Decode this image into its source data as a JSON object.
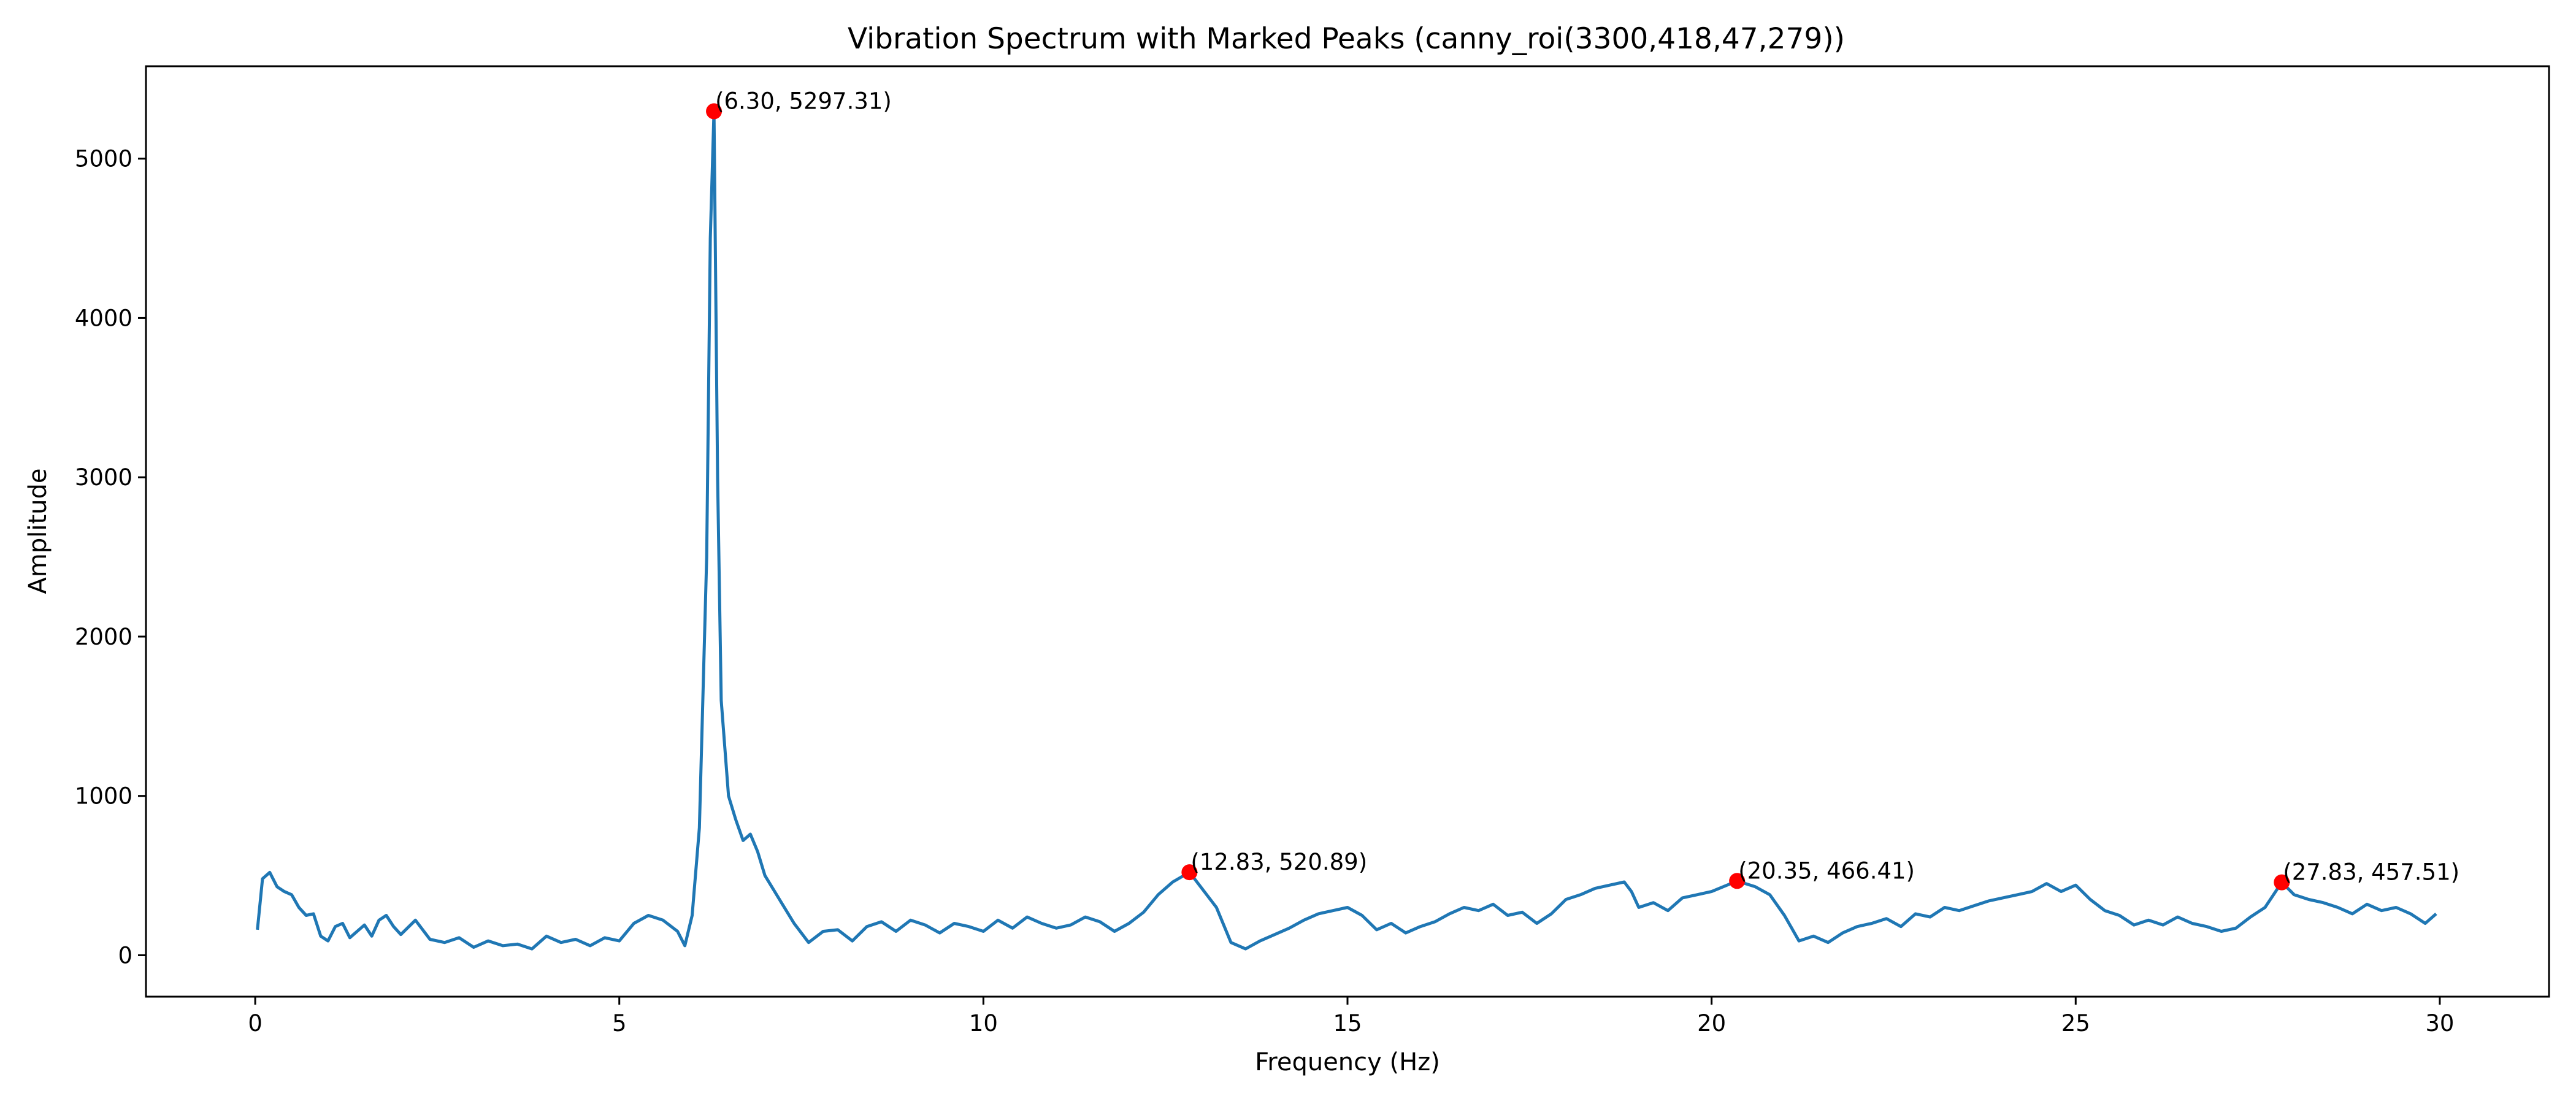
{
  "chart_data": {
    "type": "line",
    "title": "Vibration Spectrum with Marked Peaks (canny_roi(3300,418,47,279))",
    "xlabel": "Frequency (Hz)",
    "ylabel": "Amplitude",
    "xlim": [
      -1.5,
      31.5
    ],
    "ylim": [
      -260,
      5580
    ],
    "x_ticks": [
      0,
      5,
      10,
      15,
      20,
      25,
      30
    ],
    "y_ticks": [
      0,
      1000,
      2000,
      3000,
      4000,
      5000
    ],
    "grid": false,
    "colors": {
      "line": "#1f77b4",
      "peak": "#ff0000"
    },
    "series": [
      {
        "x": [
          0.03,
          0.1,
          0.2,
          0.3,
          0.4,
          0.5,
          0.6,
          0.7,
          0.8,
          0.9,
          1.0,
          1.1,
          1.2,
          1.3,
          1.4,
          1.5,
          1.6,
          1.7,
          1.8,
          1.9,
          2.0,
          2.2,
          2.4,
          2.6,
          2.8,
          3.0,
          3.2,
          3.4,
          3.6,
          3.8,
          4.0,
          4.2,
          4.4,
          4.6,
          4.8,
          5.0,
          5.2,
          5.4,
          5.6,
          5.8,
          5.9,
          6.0,
          6.1,
          6.2,
          6.25,
          6.3,
          6.35,
          6.4,
          6.5,
          6.6,
          6.7,
          6.8,
          6.9,
          7.0,
          7.2,
          7.4,
          7.6,
          7.8,
          8.0,
          8.2,
          8.4,
          8.6,
          8.8,
          9.0,
          9.2,
          9.4,
          9.6,
          9.8,
          10.0,
          10.2,
          10.4,
          10.6,
          10.8,
          11.0,
          11.2,
          11.4,
          11.6,
          11.8,
          12.0,
          12.2,
          12.4,
          12.6,
          12.83,
          13.0,
          13.2,
          13.4,
          13.6,
          13.8,
          14.0,
          14.2,
          14.4,
          14.6,
          14.8,
          15.0,
          15.2,
          15.4,
          15.6,
          15.8,
          16.0,
          16.2,
          16.4,
          16.6,
          16.8,
          17.0,
          17.2,
          17.4,
          17.6,
          17.8,
          18.0,
          18.2,
          18.4,
          18.6,
          18.8,
          18.9,
          19.0,
          19.2,
          19.4,
          19.6,
          19.8,
          20.0,
          20.35,
          20.6,
          20.8,
          21.0,
          21.2,
          21.4,
          21.6,
          21.8,
          22.0,
          22.2,
          22.4,
          22.6,
          22.8,
          23.0,
          23.2,
          23.4,
          23.6,
          23.8,
          24.0,
          24.2,
          24.4,
          24.6,
          24.8,
          25.0,
          25.2,
          25.4,
          25.6,
          25.8,
          26.0,
          26.2,
          26.4,
          26.6,
          26.8,
          27.0,
          27.2,
          27.4,
          27.6,
          27.83,
          28.0,
          28.2,
          28.4,
          28.6,
          28.8,
          29.0,
          29.2,
          29.4,
          29.6,
          29.8,
          29.95
        ],
        "y": [
          160,
          480,
          520,
          430,
          400,
          380,
          300,
          250,
          260,
          120,
          90,
          180,
          200,
          110,
          150,
          190,
          120,
          220,
          250,
          180,
          130,
          220,
          100,
          80,
          110,
          50,
          90,
          60,
          70,
          40,
          120,
          80,
          100,
          60,
          110,
          90,
          200,
          250,
          220,
          150,
          60,
          250,
          800,
          2500,
          4500,
          5297,
          3000,
          1600,
          1000,
          850,
          720,
          760,
          650,
          500,
          350,
          200,
          80,
          150,
          160,
          90,
          180,
          210,
          150,
          220,
          190,
          140,
          200,
          180,
          150,
          220,
          170,
          240,
          200,
          170,
          190,
          240,
          210,
          150,
          200,
          270,
          380,
          460,
          521,
          420,
          300,
          80,
          40,
          90,
          130,
          170,
          220,
          260,
          280,
          300,
          250,
          160,
          200,
          140,
          180,
          210,
          260,
          300,
          280,
          320,
          250,
          270,
          200,
          260,
          350,
          380,
          420,
          440,
          460,
          400,
          300,
          330,
          280,
          360,
          380,
          400,
          466,
          430,
          380,
          250,
          90,
          120,
          80,
          140,
          180,
          200,
          230,
          180,
          260,
          240,
          300,
          280,
          310,
          340,
          360,
          380,
          400,
          450,
          400,
          440,
          350,
          280,
          250,
          190,
          220,
          190,
          240,
          200,
          180,
          150,
          170,
          240,
          300,
          458,
          380,
          350,
          330,
          300,
          260,
          320,
          280,
          300,
          260,
          200,
          260
        ]
      }
    ],
    "peaks": [
      {
        "x": 6.3,
        "y": 5297.31,
        "label": "(6.30, 5297.31)"
      },
      {
        "x": 12.83,
        "y": 520.89,
        "label": "(12.83, 520.89)"
      },
      {
        "x": 20.35,
        "y": 466.41,
        "label": "(20.35, 466.41)"
      },
      {
        "x": 27.83,
        "y": 457.51,
        "label": "(27.83, 457.51)"
      }
    ]
  }
}
